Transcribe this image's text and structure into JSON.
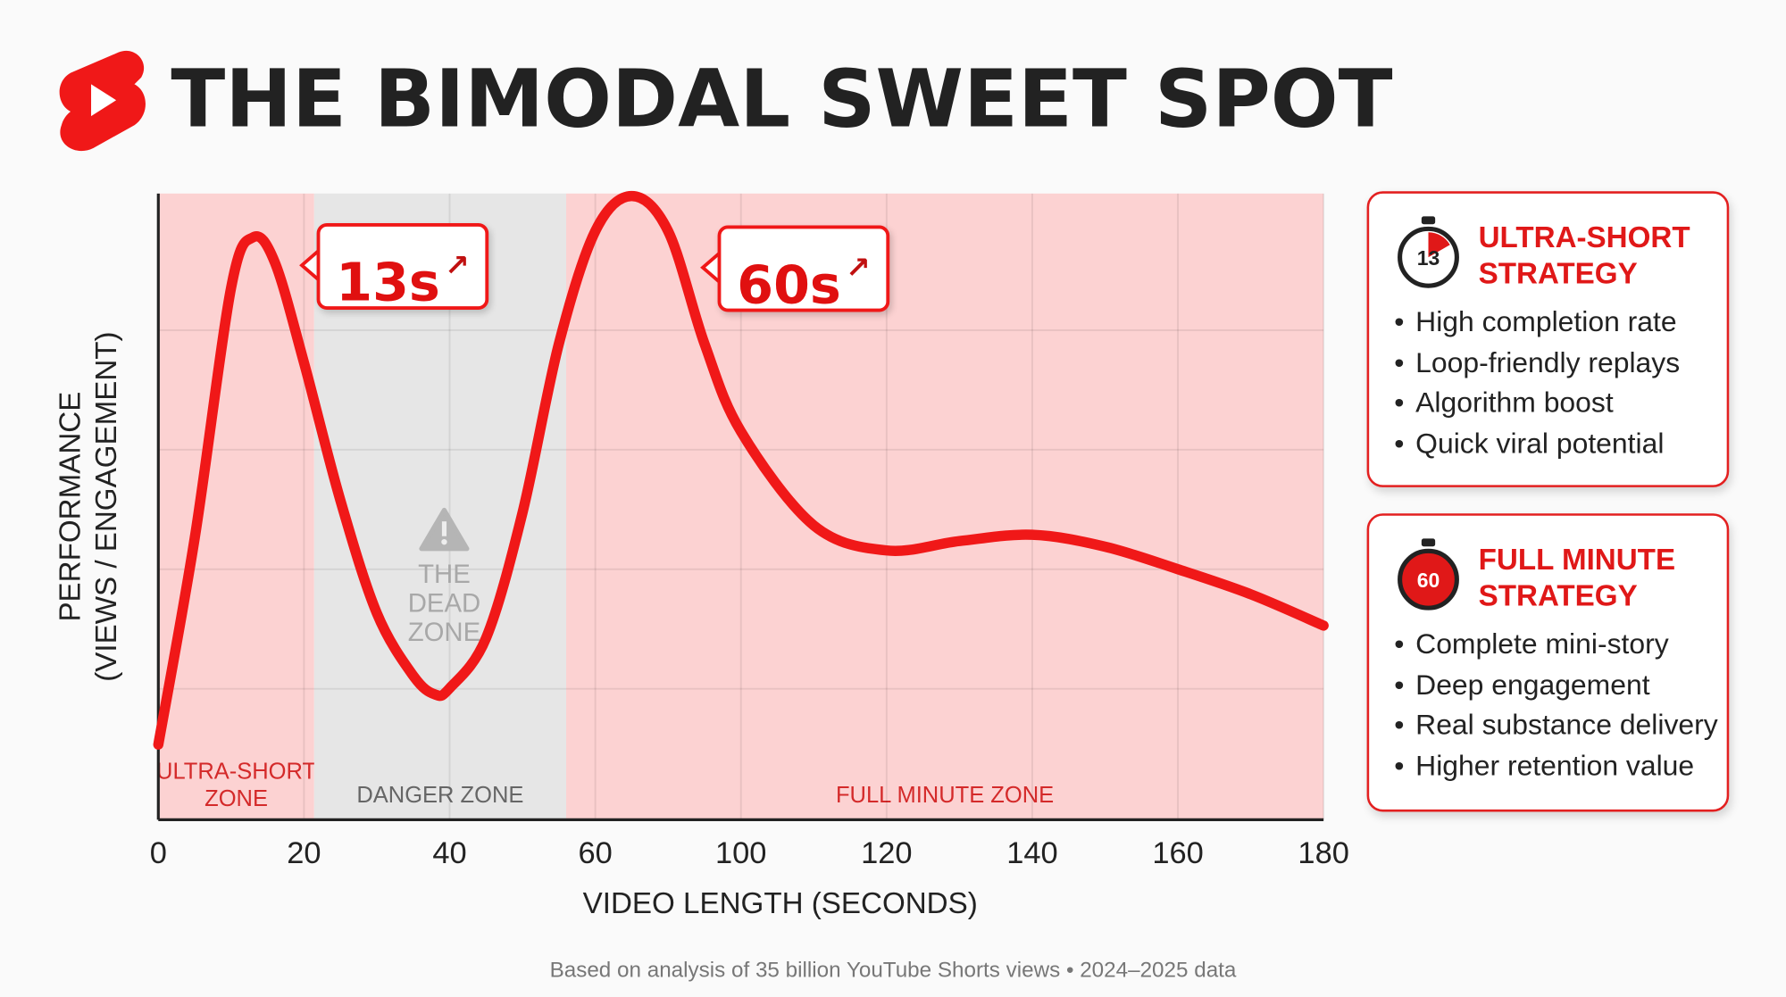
{
  "header": {
    "title": "THE BIMODAL SWEET SPOT"
  },
  "chart_data": {
    "type": "line",
    "x_label": "VIDEO LENGTH (SECONDS)",
    "y_label": [
      "PERFORMANCE",
      "(VIEWS / ENGAGEMENT)"
    ],
    "x": [
      0,
      5,
      10,
      13,
      16,
      20,
      25,
      30,
      35,
      38,
      40,
      45,
      50,
      55,
      60,
      70,
      80,
      90,
      100,
      110,
      120,
      130,
      140,
      150,
      160,
      170,
      180
    ],
    "values": [
      12,
      45,
      85,
      93,
      89,
      73,
      51,
      33,
      23,
      20,
      21,
      29,
      49,
      76,
      94,
      99.6,
      94,
      76,
      62,
      47,
      43,
      44.5,
      45.5,
      43.6,
      40,
      36,
      31
    ],
    "color": "#f01818",
    "xlim": [
      0,
      180
    ],
    "xticks": [
      0,
      20,
      40,
      60,
      100,
      120,
      140,
      160,
      180
    ],
    "ylim": [
      0,
      100
    ],
    "grid": true,
    "zones": [
      {
        "label": [
          "ULTRA-SHORT",
          "ZONE"
        ],
        "start": 0,
        "end": 21.4,
        "color": "#fcd2d2",
        "label_color": "#d42a2a"
      },
      {
        "label": [
          "DANGER ZONE"
        ],
        "start": 21.4,
        "end": 56,
        "color": "#e6e6e6",
        "label_color": "#666666"
      },
      {
        "label": [
          "FULL MINUTE ZONE"
        ],
        "start": 56,
        "end": 180,
        "color": "#fcd2d2",
        "label_color": "#d42a2a"
      }
    ],
    "dead_zone_label": [
      "THE",
      "DEAD",
      "ZONE"
    ],
    "annotations": [
      "13s",
      "60s"
    ]
  },
  "cards": [
    {
      "badge": "13",
      "title": [
        "ULTRA-SHORT",
        "STRATEGY"
      ],
      "bullets": [
        "High completion rate",
        "Loop-friendly replays",
        "Algorithm boost",
        "Quick viral potential"
      ]
    },
    {
      "badge": "60",
      "title": [
        "FULL MINUTE",
        "STRATEGY"
      ],
      "bullets": [
        "Complete mini-story",
        "Deep engagement",
        "Real substance delivery",
        "Higher retention value"
      ]
    }
  ],
  "footer": "Based on analysis of 35 billion YouTube Shorts views • 2024–2025 data"
}
